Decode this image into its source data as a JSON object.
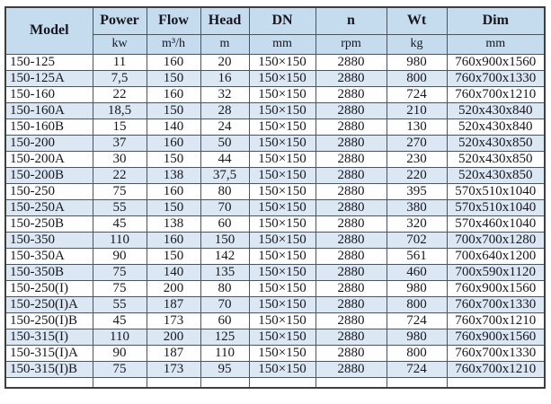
{
  "colors": {
    "header_bg": "#c5dbee",
    "row_alt_bg": "#dbe8f4",
    "row_bg": "#fefefe",
    "border_inner": "#4a555f",
    "border_outer": "#3a3f44",
    "text_color": "#16161f"
  },
  "table": {
    "columns": [
      {
        "label": "Model",
        "unit": ""
      },
      {
        "label": "Power",
        "unit": "kw"
      },
      {
        "label": "Flow",
        "unit": "m³/h"
      },
      {
        "label": "Head",
        "unit": "m"
      },
      {
        "label": "DN",
        "unit": "mm"
      },
      {
        "label": "n",
        "unit": "rpm"
      },
      {
        "label": "Wt",
        "unit": "kg"
      },
      {
        "label": "Dim",
        "unit": "mm"
      }
    ],
    "rows": [
      [
        "150-125",
        "11",
        "160",
        "20",
        "150×150",
        "2880",
        "980",
        "760x900x1560"
      ],
      [
        "150-125A",
        "7,5",
        "150",
        "16",
        "150×150",
        "2880",
        "800",
        "760x700x1330"
      ],
      [
        "150-160",
        "22",
        "160",
        "32",
        "150×150",
        "2880",
        "724",
        "760x700x1210"
      ],
      [
        "150-160A",
        "18,5",
        "150",
        "28",
        "150×150",
        "2880",
        "210",
        "520x430x840"
      ],
      [
        "150-160B",
        "15",
        "140",
        "24",
        "150×150",
        "2880",
        "130",
        "520x430x840"
      ],
      [
        "150-200",
        "37",
        "160",
        "50",
        "150×150",
        "2880",
        "270",
        "520x430x850"
      ],
      [
        "150-200A",
        "30",
        "150",
        "44",
        "150×150",
        "2880",
        "230",
        "520x430x850"
      ],
      [
        "150-200B",
        "22",
        "138",
        "37,5",
        "150×150",
        "2880",
        "220",
        "520x430x850"
      ],
      [
        "150-250",
        "75",
        "160",
        "80",
        "150×150",
        "2880",
        "395",
        "570x510x1040"
      ],
      [
        "150-250A",
        "55",
        "150",
        "70",
        "150×150",
        "2880",
        "380",
        "570x510x1040"
      ],
      [
        "150-250B",
        "45",
        "138",
        "60",
        "150×150",
        "2880",
        "320",
        "570x460x1040"
      ],
      [
        "150-350",
        "110",
        "160",
        "150",
        "150×150",
        "2880",
        "702",
        "700x700x1280"
      ],
      [
        "150-350A",
        "90",
        "150",
        "142",
        "150×150",
        "2880",
        "561",
        "700x640x1200"
      ],
      [
        "150-350B",
        "75",
        "140",
        "135",
        "150×150",
        "2880",
        "460",
        "700x590x1120"
      ],
      [
        "150-250(I)",
        "75",
        "200",
        "80",
        "150×150",
        "2880",
        "980",
        "760x900x1560"
      ],
      [
        "150-250(I)A",
        "55",
        "187",
        "70",
        "150×150",
        "2880",
        "800",
        "760x700x1330"
      ],
      [
        "150-250(I)B",
        "45",
        "173",
        "60",
        "150×150",
        "2880",
        "724",
        "760x700x1210"
      ],
      [
        "150-315(I)",
        "110",
        "200",
        "125",
        "150×150",
        "2880",
        "980",
        "760x900x1560"
      ],
      [
        "150-315(I)A",
        "90",
        "187",
        "110",
        "150×150",
        "2880",
        "800",
        "760x700x1330"
      ],
      [
        "150-315(I)B",
        "75",
        "173",
        "95",
        "150×150",
        "2880",
        "724",
        "760x700x1210"
      ]
    ]
  }
}
